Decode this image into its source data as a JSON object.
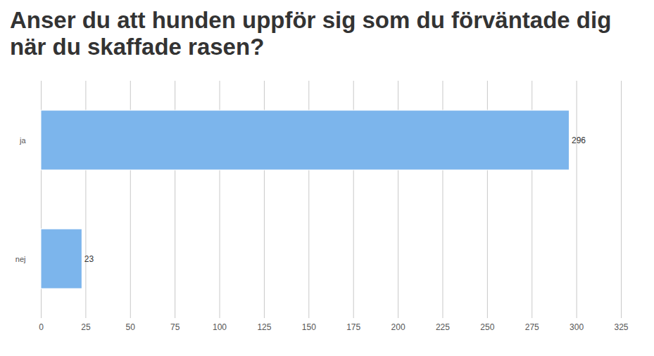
{
  "chart_data": {
    "type": "bar",
    "orientation": "horizontal",
    "title": "Anser du att hunden uppför sig som du förväntade dig när du skaffade rasen?",
    "categories": [
      "ja",
      "nej"
    ],
    "values": [
      296,
      23
    ],
    "color": "#7cb5ec",
    "xlim": [
      0,
      325
    ],
    "xticks": [
      0,
      25,
      50,
      75,
      100,
      125,
      150,
      175,
      200,
      225,
      250,
      275,
      300,
      325
    ],
    "grid": true,
    "data_labels": true
  }
}
